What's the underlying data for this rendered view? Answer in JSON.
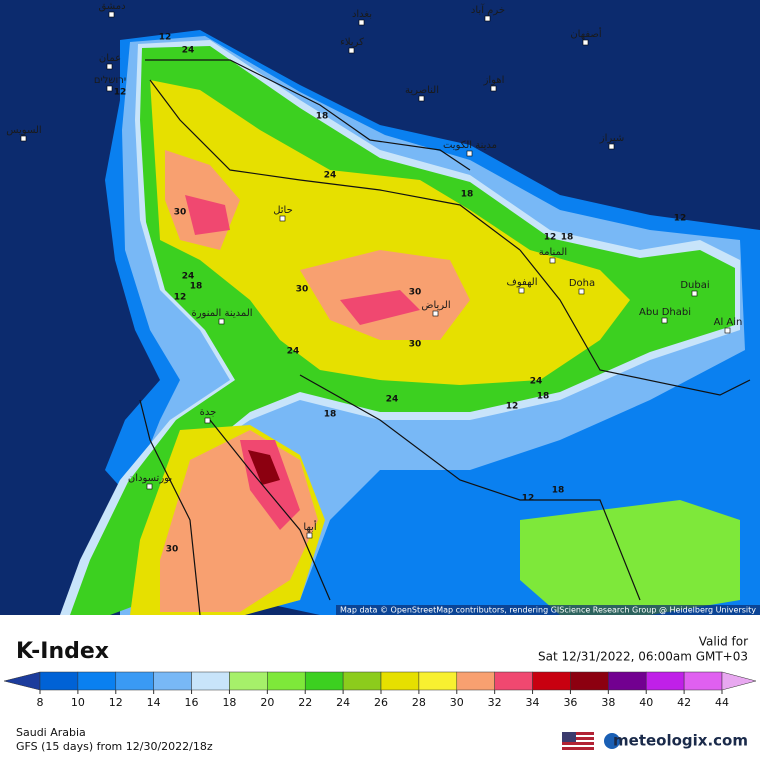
{
  "header": {
    "title": "K-Index",
    "valid_label": "Valid for",
    "valid_time": "Sat 12/31/2022, 06:00am GMT+03"
  },
  "legend": {
    "ticks": [
      8,
      10,
      12,
      14,
      16,
      18,
      20,
      22,
      24,
      26,
      28,
      30,
      32,
      34,
      36,
      38,
      40,
      42,
      44
    ],
    "under_color": "#1c3c9c",
    "colors": [
      "#0062d6",
      "#0a80f0",
      "#3a9af4",
      "#78b8f6",
      "#c8e4fa",
      "#a6f06a",
      "#7ee83a",
      "#3cd020",
      "#8ccc1c",
      "#e6e000",
      "#f8f030",
      "#f8a070",
      "#f04870",
      "#c80010",
      "#8c0010",
      "#720090",
      "#c020e8",
      "#e060f0"
    ],
    "over_color": "#e8a8f0"
  },
  "footer": {
    "region": "Saudi Arabia",
    "model": "GFS (15 days) from 12/30/2022/18z",
    "brand": "meteologix.com"
  },
  "attribution": "Map data © OpenStreetMap contributors, rendering GIScience Research Group @ Heidelberg University",
  "cities": [
    "دمشق",
    "بغداد",
    "خرم آباد",
    "كربلاء",
    "أصفهان",
    "عمان",
    "ירושלים",
    "الناصرية",
    "اهواز",
    "السويس",
    "مدينة الكويت",
    "شيراز",
    "حائل",
    "المنامة",
    "الهفوف",
    "Doha",
    "Dubai",
    "Abu Dhabi",
    "Al Ain",
    "الرياض",
    "المدينة المنورة",
    "جدة",
    "بورتسودان",
    "أبها"
  ],
  "contour_labels": [
    12,
    24,
    12,
    18,
    24,
    18,
    12,
    12,
    18,
    30,
    24,
    18,
    12,
    30,
    30,
    30,
    24,
    24,
    18,
    24,
    12,
    18,
    12,
    18,
    30
  ]
}
